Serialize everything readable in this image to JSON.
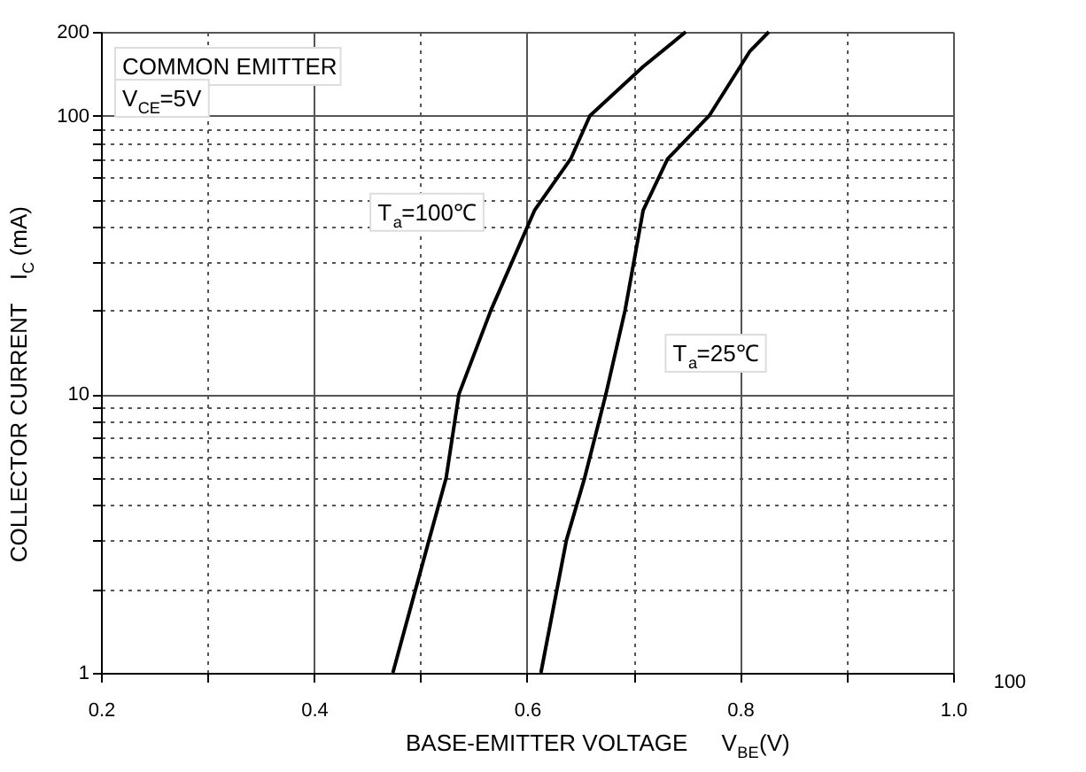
{
  "chart_data": {
    "type": "line",
    "title": "COMMON EMITTER",
    "subtitle": "V$_{CE}$=5V",
    "xlabel": "BASE-EMITTER VOLTAGE    V$_{BE}$(V)",
    "ylabel": "COLLECTOR CURRENT    I$_{C}$ (mA)",
    "series": [
      {
        "color": "#000000",
        "x": [
          0.474,
          0.508,
          0.524,
          0.536,
          0.566,
          0.607,
          0.641,
          0.659,
          0.709,
          0.749
        ],
        "values": [
          1,
          3,
          5,
          10,
          20,
          45.7,
          70,
          100,
          150,
          200
        ]
      },
      {
        "color": "#000000",
        "x": [
          0.613,
          0.637,
          0.654,
          0.674,
          0.692,
          0.709,
          0.732,
          0.771,
          0.809,
          0.827
        ],
        "values": [
          1,
          3,
          5,
          10,
          20,
          45.7,
          70,
          100,
          170,
          200
        ]
      }
    ],
    "annotations": [
      "T$_{a}$=100℃",
      "T$_{a}$=25℃",
      "100"
    ],
    "xlim": [
      0.2,
      1.0
    ],
    "xticks": [
      0.2,
      {
        "value": 0.3,
        "label": null
      },
      0.4,
      {
        "value": 0.5,
        "label": null
      },
      0.6,
      {
        "value": 0.7,
        "label": null
      },
      0.8,
      {
        "value": 0.9,
        "label": null
      },
      {
        "value": 1.0,
        "label": "1.0"
      }
    ],
    "ylim": [
      1,
      200
    ],
    "yticks": [
      1,
      {
        "value": 2,
        "label": null
      },
      {
        "value": 3,
        "label": null
      },
      {
        "value": 4,
        "label": null
      },
      {
        "value": 5,
        "label": null
      },
      {
        "value": 6,
        "label": null
      },
      {
        "value": 7,
        "label": null
      },
      {
        "value": 8,
        "label": null
      },
      {
        "value": 9,
        "label": null
      },
      10,
      {
        "value": 20,
        "label": null
      },
      {
        "value": 30,
        "label": null
      },
      {
        "value": 40,
        "label": null
      },
      {
        "value": 50,
        "label": null
      },
      {
        "value": 60,
        "label": null
      },
      {
        "value": 70,
        "label": null
      },
      {
        "value": 80,
        "label": null
      },
      {
        "value": 90,
        "label": null
      },
      100,
      200
    ],
    "log": true,
    "grid": true,
    "legend": false,
    "marker": "none",
    "line_style": "solid"
  }
}
